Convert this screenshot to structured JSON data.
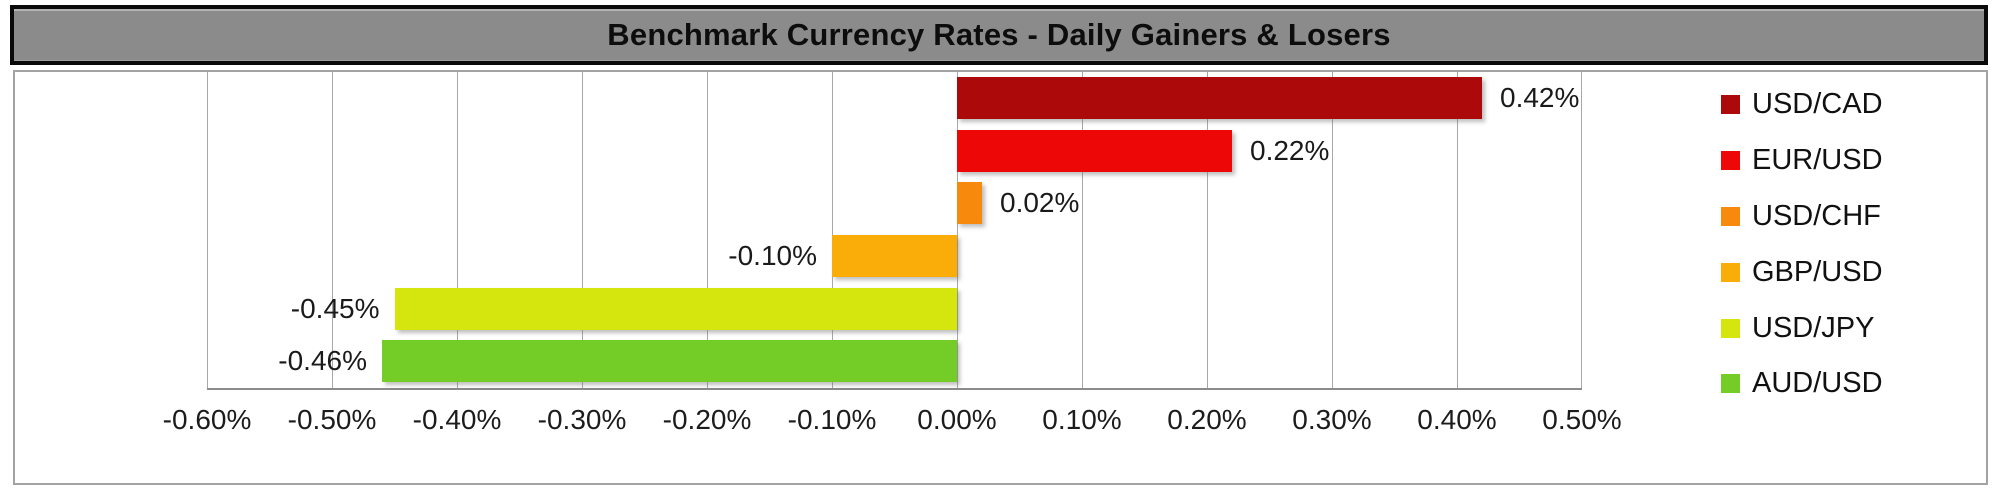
{
  "chart_data": {
    "type": "bar",
    "orientation": "horizontal",
    "title": "Benchmark Currency Rates - Daily Gainers & Losers",
    "series": [
      {
        "name": "USD/CAD",
        "value": 0.42,
        "label": "0.42%",
        "color": "#AC0A0A"
      },
      {
        "name": "EUR/USD",
        "value": 0.22,
        "label": "0.22%",
        "color": "#EE0707"
      },
      {
        "name": "USD/CHF",
        "value": 0.02,
        "label": "0.02%",
        "color": "#F78A0D"
      },
      {
        "name": "GBP/USD",
        "value": -0.1,
        "label": "-0.10%",
        "color": "#FAAD08"
      },
      {
        "name": "USD/JPY",
        "value": -0.45,
        "label": "-0.45%",
        "color": "#D4E60D"
      },
      {
        "name": "AUD/USD",
        "value": -0.46,
        "label": "-0.46%",
        "color": "#74CD26"
      }
    ],
    "x_axis": {
      "min": -0.6,
      "max": 0.5,
      "ticks": [
        {
          "value": -0.6,
          "label": "-0.60%"
        },
        {
          "value": -0.5,
          "label": "-0.50%"
        },
        {
          "value": -0.4,
          "label": "-0.40%"
        },
        {
          "value": -0.3,
          "label": "-0.30%"
        },
        {
          "value": -0.2,
          "label": "-0.20%"
        },
        {
          "value": -0.1,
          "label": "-0.10%"
        },
        {
          "value": 0.0,
          "label": "0.00%"
        },
        {
          "value": 0.1,
          "label": "0.10%"
        },
        {
          "value": 0.2,
          "label": "0.20%"
        },
        {
          "value": 0.3,
          "label": "0.30%"
        },
        {
          "value": 0.4,
          "label": "0.40%"
        },
        {
          "value": 0.5,
          "label": "0.50%"
        }
      ]
    },
    "legend_position": "right",
    "grid": true
  },
  "colors": {
    "title_background": "#8B8B8B",
    "title_border": "#0A0A0A",
    "title_text": "#0D0D0D",
    "chart_border": "#A3A3A3",
    "gridline": "#A8A8A8",
    "axis_line": "#8C8C8C",
    "label_text": "#1A1A1A"
  }
}
